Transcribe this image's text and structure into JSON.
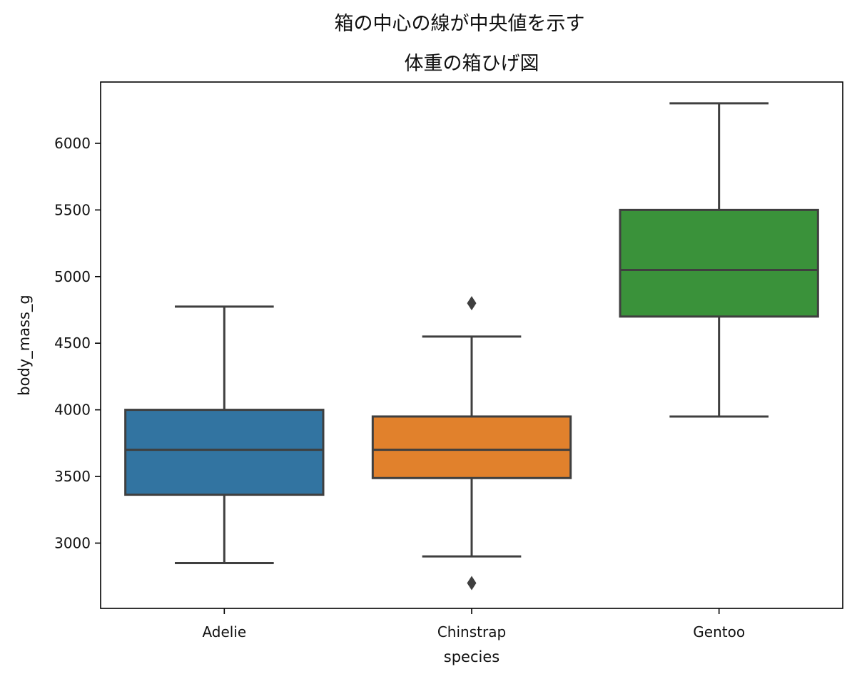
{
  "chart_data": {
    "type": "box",
    "suptitle": "箱の中心の線が中央値を示す",
    "title": "体重の箱ひげ図",
    "xlabel": "species",
    "ylabel": "body_mass_g",
    "categories": [
      "Adelie",
      "Chinstrap",
      "Gentoo"
    ],
    "ylim": [
      2510,
      6460
    ],
    "yticks": [
      3000,
      3500,
      4000,
      4500,
      5000,
      5500,
      6000
    ],
    "grid": false,
    "boxes": [
      {
        "category": "Adelie",
        "whisker_low": 2850,
        "q1": 3363,
        "median": 3700,
        "q3": 4000,
        "whisker_high": 4775,
        "outliers": [],
        "color": "#3274a1"
      },
      {
        "category": "Chinstrap",
        "whisker_low": 2900,
        "q1": 3488,
        "median": 3700,
        "q3": 3950,
        "whisker_high": 4550,
        "outliers": [
          4800,
          2700
        ],
        "color": "#e1812c"
      },
      {
        "category": "Gentoo",
        "whisker_low": 3950,
        "q1": 4700,
        "median": 5050,
        "q3": 5500,
        "whisker_high": 6300,
        "outliers": [],
        "color": "#3a923a"
      }
    ],
    "line_color": "#3f3f3f"
  }
}
